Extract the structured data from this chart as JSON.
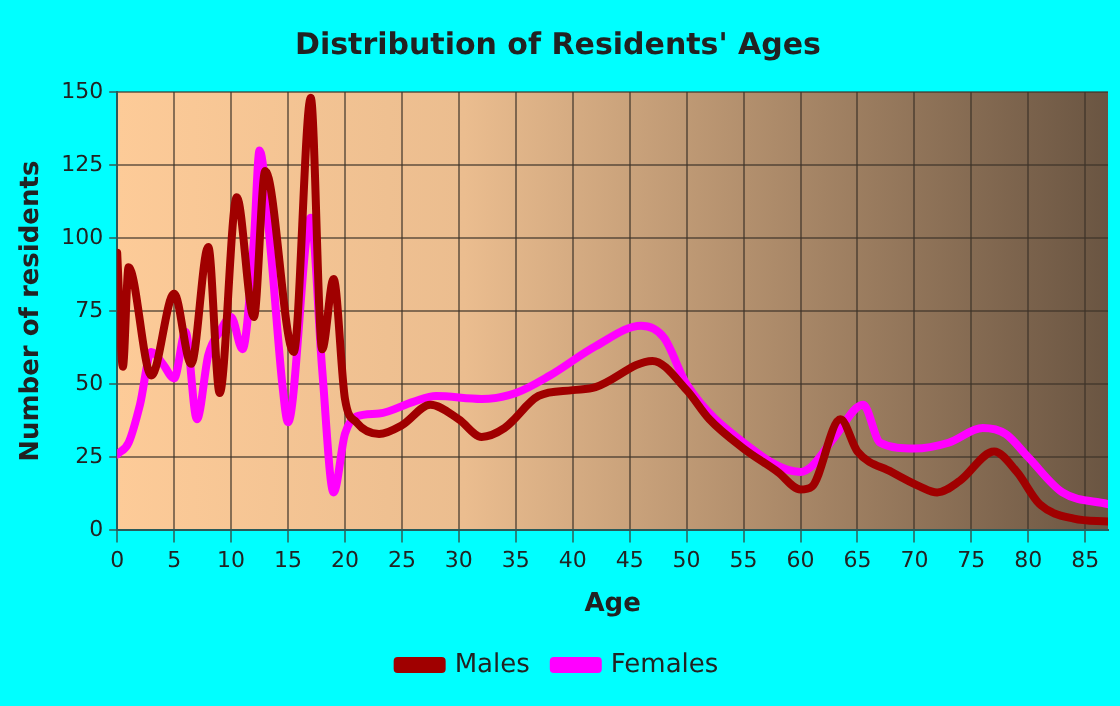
{
  "chart_data": {
    "type": "line",
    "title": "Distribution of Residents' Ages",
    "xlabel": "Age",
    "ylabel": "Number of residents",
    "xlim": [
      0,
      87
    ],
    "xticks": [
      0,
      5,
      10,
      15,
      20,
      25,
      30,
      35,
      40,
      45,
      50,
      55,
      60,
      65,
      70,
      75,
      80,
      85
    ],
    "ylim": [
      0,
      150
    ],
    "yticks": [
      0,
      25,
      50,
      75,
      100,
      125,
      150
    ],
    "grid": true,
    "legend": "bottom",
    "marker": "none",
    "line_style": "solid",
    "series": [
      {
        "name": "Males",
        "color": "#a00000",
        "x": [
          0,
          0.5,
          1,
          3,
          5,
          6.5,
          8,
          9,
          10.5,
          12,
          13,
          15.5,
          17,
          18,
          19,
          20,
          21,
          23,
          25,
          27.5,
          30,
          32,
          34,
          37,
          40,
          42,
          47,
          50,
          52,
          55,
          58,
          60,
          61,
          63.5,
          65,
          68,
          70.5,
          72,
          74,
          77,
          79,
          81,
          84,
          87
        ],
        "values": [
          95,
          56,
          90,
          53,
          81,
          57,
          97,
          47,
          114,
          73,
          123,
          61,
          148,
          62,
          86,
          45,
          37,
          33,
          36,
          43,
          38,
          32,
          35,
          46,
          48,
          49,
          58,
          48,
          38,
          28,
          20,
          14,
          15,
          38,
          27,
          20,
          15,
          13,
          17,
          27,
          20,
          9,
          4,
          3
        ]
      },
      {
        "name": "Females",
        "color": "#ff00ff",
        "x": [
          0,
          1,
          2,
          3,
          4,
          5,
          6,
          7,
          8,
          9,
          10,
          11,
          12,
          12.5,
          13.5,
          14.5,
          15,
          17,
          18,
          19,
          20,
          21,
          23,
          26,
          28,
          32,
          35,
          38,
          42,
          46,
          48,
          50,
          55,
          60,
          61,
          63,
          65.5,
          67,
          70,
          73,
          76,
          78,
          80,
          83,
          87
        ],
        "values": [
          26,
          30,
          43,
          61,
          57,
          52,
          68,
          38,
          60,
          68,
          73,
          62,
          99,
          130,
          95,
          50,
          37,
          107,
          55,
          13,
          33,
          39,
          40,
          44,
          46,
          45,
          47,
          53,
          63,
          70,
          66,
          50,
          30,
          20,
          22,
          32,
          43,
          30,
          28,
          30,
          35,
          33,
          25,
          13,
          9
        ]
      }
    ]
  }
}
